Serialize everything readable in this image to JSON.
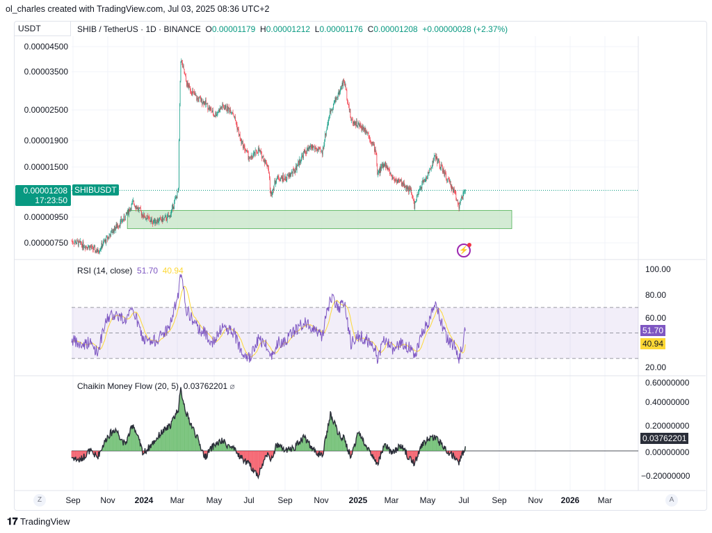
{
  "header": {
    "author_line": "ol_charles created with TradingView.com, Jul 03, 2025 08:36 UTC+2",
    "currency": "USDT",
    "symbol": "SHIB / TetherUS · 1D · BINANCE",
    "open_label": "O",
    "open": "0.00001179",
    "high_label": "H",
    "high": "0.00001212",
    "low_label": "L",
    "low": "0.00001176",
    "close_label": "C",
    "close": "0.00001208",
    "change": "+0.00000028 (+2.37%)"
  },
  "price_tag": {
    "symbol": "SHIBUSDT",
    "price": "0.00001208",
    "countdown": "17:23:50"
  },
  "colors": {
    "up": "#089981",
    "down": "#f23645",
    "rsi": "#7e57c2",
    "rsi_ma": "#fdd835",
    "zone": "#c8e6c9",
    "cmf_pos": "#4caf50",
    "cmf_neg": "#f23645"
  },
  "footer": {
    "brand": "TradingView"
  },
  "axis_buttons": {
    "left": "Z",
    "right": "A"
  },
  "chart_data": [
    {
      "type": "candlestick",
      "title": "SHIB / TetherUS · 1D · BINANCE",
      "y_scale": "log",
      "y_tick_labels": [
        "0.00004500",
        "0.00003500",
        "0.00002500",
        "0.00001900",
        "0.00001500",
        "0.00000950",
        "0.00000750"
      ],
      "x_tick_labels": [
        "Sep",
        "Nov",
        "2024",
        "Mar",
        "May",
        "Jul",
        "Sep",
        "Nov",
        "2025",
        "Mar",
        "May",
        "Jul",
        "Sep",
        "Nov",
        "2026",
        "Mar"
      ],
      "unit": "USDT (×1e-6)",
      "series": {
        "dates": [
          "2023-09-01",
          "2023-09-15",
          "2023-10-01",
          "2023-10-15",
          "2023-11-01",
          "2023-11-15",
          "2023-12-01",
          "2023-12-15",
          "2024-01-01",
          "2024-01-15",
          "2024-02-01",
          "2024-02-15",
          "2024-03-01",
          "2024-03-05",
          "2024-03-15",
          "2024-04-01",
          "2024-04-15",
          "2024-05-01",
          "2024-05-15",
          "2024-06-01",
          "2024-06-15",
          "2024-07-01",
          "2024-07-15",
          "2024-08-01",
          "2024-08-05",
          "2024-08-15",
          "2024-09-01",
          "2024-09-15",
          "2024-10-01",
          "2024-10-15",
          "2024-11-01",
          "2024-11-15",
          "2024-12-01",
          "2024-12-08",
          "2024-12-20",
          "2025-01-01",
          "2025-01-15",
          "2025-02-01",
          "2025-02-03",
          "2025-02-15",
          "2025-03-01",
          "2025-03-15",
          "2025-04-01",
          "2025-04-07",
          "2025-04-20",
          "2025-05-01",
          "2025-05-12",
          "2025-06-01",
          "2025-06-15",
          "2025-06-22",
          "2025-07-03"
        ],
        "close": [
          7.6,
          7.4,
          7.2,
          6.9,
          7.8,
          8.6,
          9.4,
          10.8,
          9.6,
          9.1,
          9.2,
          9.5,
          12.0,
          40.0,
          32,
          28,
          27,
          24,
          26,
          25,
          19,
          16,
          17.5,
          15,
          11.5,
          13.5,
          13.5,
          14.5,
          17,
          18,
          17,
          25,
          30,
          33,
          23,
          22,
          21,
          17,
          14,
          15.5,
          13.5,
          13,
          12,
          10.5,
          12.8,
          14,
          16.5,
          13.5,
          11.8,
          10.5,
          12.08
        ]
      },
      "annotation_zone": {
        "from": "2023-12-05",
        "to": "2025-09-20",
        "price_low": 8.5,
        "price_high": 10.05
      },
      "last_price": 12.08
    },
    {
      "type": "line",
      "title": "RSI (14, close)",
      "value": "51.70",
      "ma_value": "40.94",
      "ylim": [
        0,
        100
      ],
      "bands": [
        30,
        50,
        70
      ],
      "y_tick_labels": [
        "100.00",
        "80.00",
        "60.00",
        "20.00"
      ],
      "rsi": [
        45,
        40,
        43,
        35,
        62,
        65,
        60,
        68,
        45,
        42,
        48,
        55,
        80,
        96,
        68,
        55,
        50,
        42,
        55,
        52,
        38,
        30,
        45,
        40,
        30,
        42,
        45,
        52,
        58,
        55,
        48,
        78,
        70,
        75,
        42,
        48,
        45,
        35,
        30,
        45,
        38,
        42,
        38,
        32,
        50,
        58,
        75,
        45,
        40,
        30,
        51.7
      ]
    },
    {
      "type": "area",
      "title": "Chaikin Money Flow (20, 5)",
      "value": "0.03762201",
      "y_tick_labels": [
        "0.60000000",
        "0.40000000",
        "0.20000000",
        "0.00000000",
        "−0.20000000"
      ],
      "cmf": [
        -0.05,
        -0.08,
        0.0,
        -0.05,
        0.12,
        0.18,
        0.05,
        0.22,
        -0.02,
        0.05,
        0.15,
        0.2,
        0.35,
        0.5,
        0.3,
        0.12,
        -0.05,
        0.05,
        0.08,
        0.02,
        -0.05,
        -0.12,
        -0.2,
        0.0,
        -0.1,
        0.05,
        0.0,
        0.03,
        0.12,
        0.02,
        -0.05,
        0.3,
        0.12,
        0.1,
        -0.05,
        0.15,
        0.05,
        -0.1,
        -0.12,
        0.05,
        -0.02,
        0.05,
        -0.08,
        -0.1,
        0.05,
        0.1,
        0.12,
        0.0,
        -0.05,
        -0.1,
        0.0376
      ]
    }
  ]
}
